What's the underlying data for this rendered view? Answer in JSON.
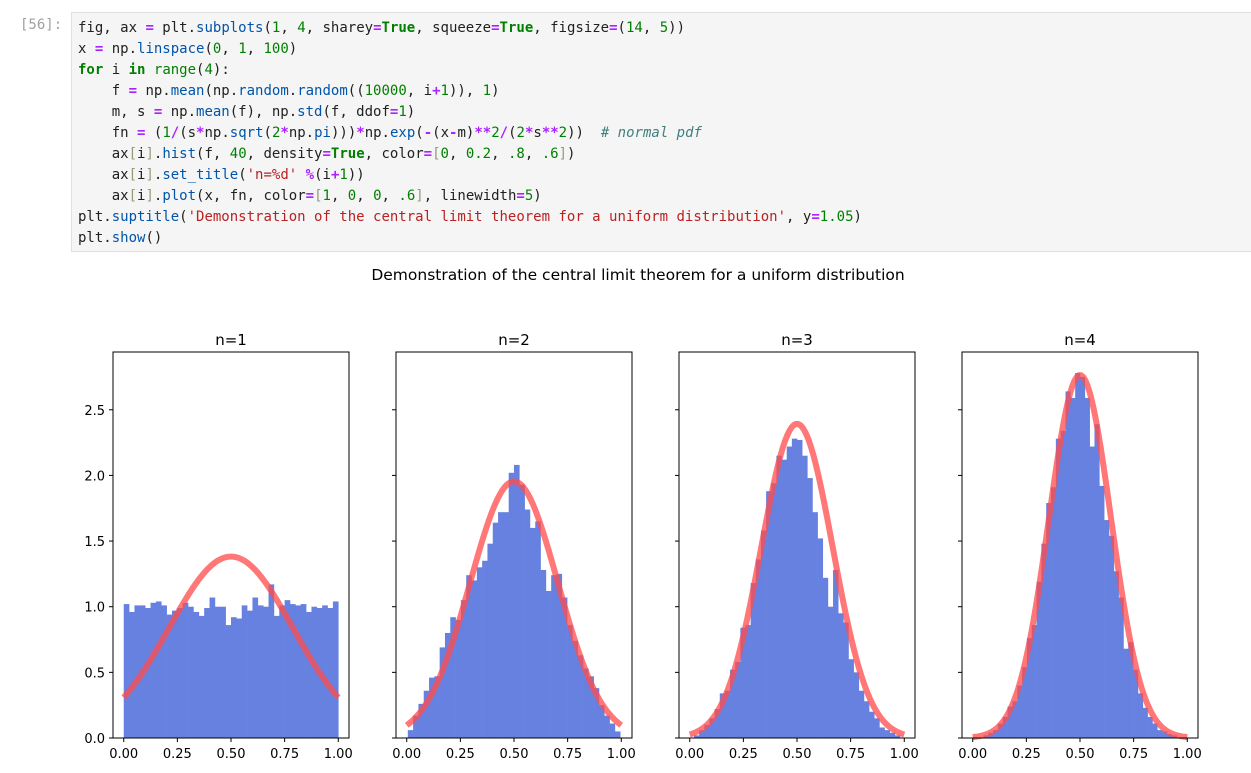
{
  "prompt": "[56]:",
  "code": {
    "lines": [
      [
        [
          "fig, ax ",
          ""
        ],
        [
          "=",
          "op"
        ],
        [
          " plt.",
          ""
        ],
        [
          "subplots",
          "fn"
        ],
        [
          "(",
          ""
        ],
        [
          "1",
          "num"
        ],
        [
          ", ",
          ""
        ],
        [
          "4",
          "num"
        ],
        [
          ", sharey",
          ""
        ],
        [
          "=",
          "op"
        ],
        [
          "True",
          "kw"
        ],
        [
          ", squeeze",
          ""
        ],
        [
          "=",
          "op"
        ],
        [
          "True",
          "kw"
        ],
        [
          ", figsize",
          ""
        ],
        [
          "=",
          "op"
        ],
        [
          "(",
          ""
        ],
        [
          "14",
          "num"
        ],
        [
          ", ",
          ""
        ],
        [
          "5",
          "num"
        ],
        [
          "))",
          ""
        ]
      ],
      [
        [
          "x ",
          ""
        ],
        [
          "=",
          "op"
        ],
        [
          " np.",
          ""
        ],
        [
          "linspace",
          "fn"
        ],
        [
          "(",
          ""
        ],
        [
          "0",
          "num"
        ],
        [
          ", ",
          ""
        ],
        [
          "1",
          "num"
        ],
        [
          ", ",
          ""
        ],
        [
          "100",
          "num"
        ],
        [
          ")",
          ""
        ]
      ],
      [
        [
          "for",
          "kw"
        ],
        [
          " i ",
          ""
        ],
        [
          "in",
          "kw"
        ],
        [
          " ",
          ""
        ],
        [
          "range",
          "bi"
        ],
        [
          "(",
          ""
        ],
        [
          "4",
          "num"
        ],
        [
          "):",
          ""
        ]
      ],
      [
        [
          "    f ",
          ""
        ],
        [
          "=",
          "op"
        ],
        [
          " np.",
          ""
        ],
        [
          "mean",
          "fn"
        ],
        [
          "(np.",
          ""
        ],
        [
          "random",
          "fn"
        ],
        [
          ".",
          ""
        ],
        [
          "random",
          "fn"
        ],
        [
          "((",
          ""
        ],
        [
          "10000",
          "num"
        ],
        [
          ", i",
          ""
        ],
        [
          "+",
          "op"
        ],
        [
          "1",
          "num"
        ],
        [
          ")), ",
          ""
        ],
        [
          "1",
          "num"
        ],
        [
          ")",
          ""
        ]
      ],
      [
        [
          "    m, s ",
          ""
        ],
        [
          "=",
          "op"
        ],
        [
          " np.",
          ""
        ],
        [
          "mean",
          "fn"
        ],
        [
          "(f), np.",
          ""
        ],
        [
          "std",
          "fn"
        ],
        [
          "(f, ddof",
          ""
        ],
        [
          "=",
          "op"
        ],
        [
          "1",
          "num"
        ],
        [
          ")",
          ""
        ]
      ],
      [
        [
          "    fn ",
          ""
        ],
        [
          "=",
          "op"
        ],
        [
          " (",
          ""
        ],
        [
          "1",
          "num"
        ],
        [
          "/",
          "op"
        ],
        [
          "(s",
          ""
        ],
        [
          "*",
          "op"
        ],
        [
          "np.",
          ""
        ],
        [
          "sqrt",
          "fn"
        ],
        [
          "(",
          ""
        ],
        [
          "2",
          "num"
        ],
        [
          "*",
          "op"
        ],
        [
          "np.",
          ""
        ],
        [
          "pi",
          "fn"
        ],
        [
          ")))",
          ""
        ],
        [
          "*",
          "op"
        ],
        [
          "np.",
          ""
        ],
        [
          "exp",
          "fn"
        ],
        [
          "(",
          ""
        ],
        [
          "-",
          "op"
        ],
        [
          "(x",
          ""
        ],
        [
          "-",
          "op"
        ],
        [
          "m)",
          ""
        ],
        [
          "**",
          "op"
        ],
        [
          "2",
          "num"
        ],
        [
          "/",
          "op"
        ],
        [
          "(",
          ""
        ],
        [
          "2",
          "num"
        ],
        [
          "*",
          "op"
        ],
        [
          "s",
          ""
        ],
        [
          "**",
          "op"
        ],
        [
          "2",
          "num"
        ],
        [
          "))  ",
          ""
        ],
        [
          "# normal pdf",
          "cm"
        ]
      ],
      [
        [
          "    ax",
          ""
        ],
        [
          "[",
          "br"
        ],
        [
          "i",
          ""
        ],
        [
          "]",
          "br"
        ],
        [
          ".",
          ""
        ],
        [
          "hist",
          "fn"
        ],
        [
          "(f, ",
          ""
        ],
        [
          "40",
          "num"
        ],
        [
          ", density",
          ""
        ],
        [
          "=",
          "op"
        ],
        [
          "True",
          "kw"
        ],
        [
          ", color",
          ""
        ],
        [
          "=",
          "op"
        ],
        [
          "[",
          "br"
        ],
        [
          "0",
          "num"
        ],
        [
          ", ",
          ""
        ],
        [
          "0.2",
          "num"
        ],
        [
          ", ",
          ""
        ],
        [
          ".8",
          "num"
        ],
        [
          ", ",
          ""
        ],
        [
          ".6",
          "num"
        ],
        [
          "]",
          "br"
        ],
        [
          ")",
          ""
        ]
      ],
      [
        [
          "    ax",
          ""
        ],
        [
          "[",
          "br"
        ],
        [
          "i",
          ""
        ],
        [
          "]",
          "br"
        ],
        [
          ".",
          ""
        ],
        [
          "set_title",
          "fn"
        ],
        [
          "(",
          ""
        ],
        [
          "'n=%d'",
          "str"
        ],
        [
          " ",
          ""
        ],
        [
          "%",
          "op"
        ],
        [
          "(i",
          ""
        ],
        [
          "+",
          "op"
        ],
        [
          "1",
          "num"
        ],
        [
          "))",
          ""
        ]
      ],
      [
        [
          "    ax",
          ""
        ],
        [
          "[",
          "br"
        ],
        [
          "i",
          ""
        ],
        [
          "]",
          "br"
        ],
        [
          ".",
          ""
        ],
        [
          "plot",
          "fn"
        ],
        [
          "(x, fn, color",
          ""
        ],
        [
          "=",
          "op"
        ],
        [
          "[",
          "br"
        ],
        [
          "1",
          "num"
        ],
        [
          ", ",
          ""
        ],
        [
          "0",
          "num"
        ],
        [
          ", ",
          ""
        ],
        [
          "0",
          "num"
        ],
        [
          ", ",
          ""
        ],
        [
          ".6",
          "num"
        ],
        [
          "]",
          "br"
        ],
        [
          ", linewidth",
          ""
        ],
        [
          "=",
          "op"
        ],
        [
          "5",
          "num"
        ],
        [
          ")",
          ""
        ]
      ],
      [
        [
          "plt.",
          ""
        ],
        [
          "suptitle",
          "fn"
        ],
        [
          "(",
          ""
        ],
        [
          "'Demonstration of the central limit theorem for a uniform distribution'",
          "str"
        ],
        [
          ", y",
          ""
        ],
        [
          "=",
          "op"
        ],
        [
          "1.05",
          "num"
        ],
        [
          ")",
          ""
        ]
      ],
      [
        [
          "plt.",
          ""
        ],
        [
          "show",
          "fn"
        ],
        [
          "()",
          ""
        ]
      ]
    ]
  },
  "chart_data": {
    "type": "bar",
    "title": "Demonstration of the central limit theorem for a uniform distribution",
    "sharey": true,
    "ylim": [
      0,
      2.94
    ],
    "xlim": [
      -0.05,
      1.05
    ],
    "yticks": [
      "0.0",
      "0.5",
      "1.0",
      "1.5",
      "2.0",
      "2.5"
    ],
    "xticks": [
      "0.00",
      "0.25",
      "0.50",
      "0.75",
      "1.00"
    ],
    "bar_color": "#6681e0",
    "line_color": "#ff4d4d",
    "panels": [
      {
        "title": "n=1",
        "bin_range": [
          0.0,
          1.0
        ],
        "mean": 0.5,
        "std": 0.2887,
        "values": [
          1.02,
          0.96,
          1.01,
          1.01,
          0.99,
          1.03,
          1.04,
          1.01,
          0.94,
          0.97,
          0.99,
          1.03,
          1.0,
          0.96,
          0.93,
          0.99,
          1.07,
          1.0,
          1.0,
          0.86,
          0.92,
          0.91,
          1.01,
          0.97,
          1.07,
          1.01,
          1.0,
          1.17,
          0.93,
          1.01,
          1.05,
          1.02,
          1.01,
          1.02,
          0.96,
          1.0,
          0.99,
          1.01,
          0.99,
          1.04
        ]
      },
      {
        "title": "n=2",
        "bin_range": [
          0.005,
          0.995
        ],
        "mean": 0.5,
        "std": 0.2041,
        "values": [
          0.06,
          0.17,
          0.26,
          0.36,
          0.46,
          0.47,
          0.69,
          0.8,
          0.92,
          0.9,
          1.05,
          1.24,
          1.2,
          1.3,
          1.35,
          1.48,
          1.64,
          1.72,
          1.72,
          2.02,
          2.08,
          1.93,
          1.74,
          1.6,
          1.65,
          1.28,
          1.12,
          1.24,
          1.25,
          1.07,
          0.86,
          0.74,
          0.63,
          0.53,
          0.47,
          0.38,
          0.25,
          0.17,
          0.11,
          0.05
        ]
      },
      {
        "title": "n=3",
        "bin_range": [
          0.02,
          0.98
        ],
        "mean": 0.5,
        "std": 0.1667,
        "values": [
          0.02,
          0.06,
          0.1,
          0.15,
          0.22,
          0.34,
          0.36,
          0.52,
          0.58,
          0.84,
          0.86,
          1.18,
          1.36,
          1.58,
          1.88,
          1.94,
          2.15,
          2.12,
          2.22,
          2.28,
          2.27,
          2.15,
          1.98,
          1.72,
          1.52,
          1.22,
          1.0,
          1.28,
          0.95,
          0.88,
          0.6,
          0.5,
          0.36,
          0.28,
          0.2,
          0.15,
          0.08,
          0.06,
          0.04,
          0.02
        ]
      },
      {
        "title": "n=4",
        "bin_range": [
          0.05,
          0.95
        ],
        "mean": 0.5,
        "std": 0.1443,
        "values": [
          0.02,
          0.04,
          0.06,
          0.11,
          0.16,
          0.24,
          0.28,
          0.4,
          0.54,
          0.76,
          0.86,
          1.19,
          1.48,
          1.79,
          1.91,
          2.28,
          2.34,
          2.64,
          2.59,
          2.78,
          2.75,
          2.59,
          2.22,
          2.39,
          1.92,
          1.66,
          1.54,
          1.27,
          1.07,
          0.68,
          0.73,
          0.52,
          0.34,
          0.23,
          0.16,
          0.11,
          0.06,
          0.05,
          0.03,
          0.02
        ]
      }
    ]
  }
}
